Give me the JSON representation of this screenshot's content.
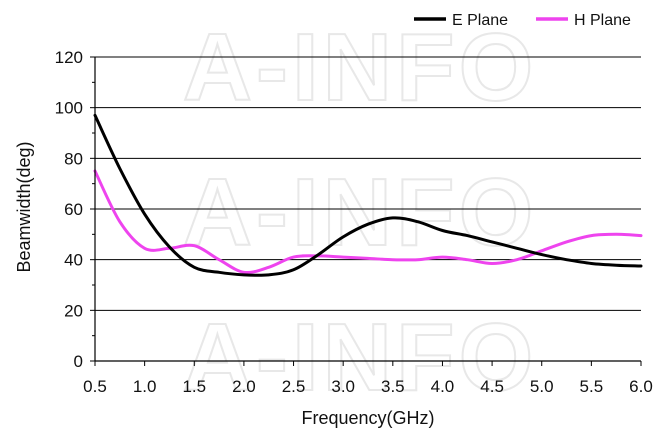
{
  "watermark": "A-INFO",
  "chart_data": {
    "type": "line",
    "xlabel": "Frequency(GHz)",
    "ylabel": "Beamwidth(deg)",
    "xlim": [
      0.5,
      6.0
    ],
    "ylim": [
      0,
      120
    ],
    "xticks": [
      "0.5",
      "1.0",
      "1.5",
      "2.0",
      "2.5",
      "3.0",
      "3.5",
      "4.0",
      "4.5",
      "5.0",
      "5.5",
      "6.0"
    ],
    "yticks": [
      "0",
      "20",
      "40",
      "60",
      "80",
      "100",
      "120"
    ],
    "grid": "horizontal",
    "legend_position": "top-right",
    "series": [
      {
        "name": "E Plane",
        "color": "#000000",
        "x": [
          0.5,
          0.75,
          1.0,
          1.25,
          1.5,
          1.75,
          2.0,
          2.25,
          2.5,
          2.75,
          3.0,
          3.25,
          3.5,
          3.75,
          4.0,
          4.25,
          4.5,
          4.75,
          5.0,
          5.25,
          5.5,
          5.75,
          6.0
        ],
        "y": [
          97,
          76,
          58,
          45,
          37,
          35,
          34,
          34,
          36,
          42,
          49,
          54,
          56.5,
          55,
          51.5,
          49.5,
          47,
          44.5,
          42,
          40,
          38.5,
          37.8,
          37.5
        ]
      },
      {
        "name": "H Plane",
        "color": "#ee44ee",
        "x": [
          0.5,
          0.75,
          1.0,
          1.25,
          1.5,
          1.75,
          2.0,
          2.25,
          2.5,
          2.75,
          3.0,
          3.25,
          3.5,
          3.75,
          4.0,
          4.25,
          4.5,
          4.75,
          5.0,
          5.25,
          5.5,
          5.75,
          6.0
        ],
        "y": [
          75,
          55,
          44.5,
          44.5,
          45.5,
          40,
          35,
          37,
          41,
          41.5,
          41,
          40.5,
          40,
          40,
          41,
          40,
          38.5,
          40,
          43.5,
          47,
          49.5,
          50,
          49.5
        ]
      }
    ]
  }
}
